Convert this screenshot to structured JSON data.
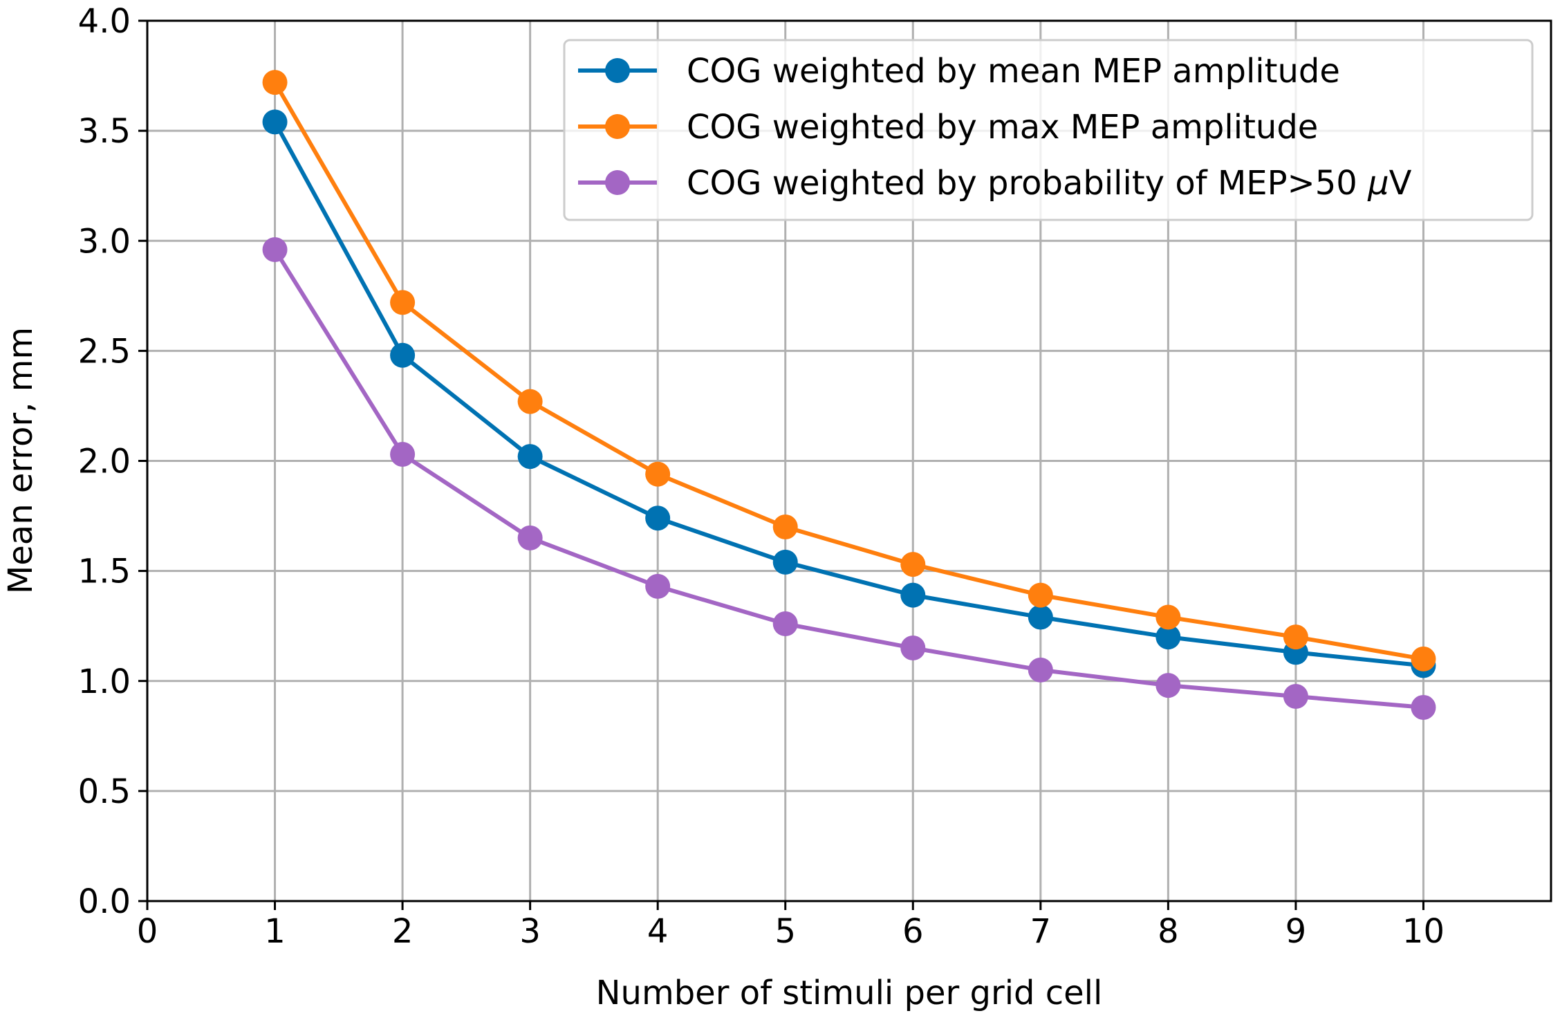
{
  "chart_data": {
    "type": "line",
    "title": "",
    "xlabel": "Number of stimuli per grid cell",
    "ylabel": "Mean error, mm",
    "xlim": [
      0,
      11
    ],
    "ylim": [
      0.0,
      4.0
    ],
    "xticks": [
      0,
      1,
      2,
      3,
      4,
      5,
      6,
      7,
      8,
      9,
      10
    ],
    "xtick_labels": [
      "0",
      "1",
      "2",
      "3",
      "4",
      "5",
      "6",
      "7",
      "8",
      "9",
      "10"
    ],
    "yticks": [
      0.0,
      0.5,
      1.0,
      1.5,
      2.0,
      2.5,
      3.0,
      3.5,
      4.0
    ],
    "ytick_labels": [
      "0.0",
      "0.5",
      "1.0",
      "1.5",
      "2.0",
      "2.5",
      "3.0",
      "3.5",
      "4.0"
    ],
    "grid": true,
    "legend_position": "top-right",
    "x": [
      1,
      2,
      3,
      4,
      5,
      6,
      7,
      8,
      9,
      10
    ],
    "series": [
      {
        "name": "COG weighted by mean MEP amplitude",
        "legend_text": "COG weighted by mean MEP amplitude",
        "color": "#0072b2",
        "values": [
          3.54,
          2.48,
          2.02,
          1.74,
          1.54,
          1.39,
          1.29,
          1.2,
          1.13,
          1.07
        ]
      },
      {
        "name": "COG weighted by max MEP amplitude",
        "legend_text": "COG weighted by max MEP amplitude",
        "color": "#ff7f0e",
        "values": [
          3.72,
          2.72,
          2.27,
          1.94,
          1.7,
          1.53,
          1.39,
          1.29,
          1.2,
          1.1
        ]
      },
      {
        "name": "COG weighted by probability of MEP>50 μV",
        "legend_text": "COG weighted by probability of MEP>50 ",
        "legend_mu": "μ",
        "legend_unit": "V",
        "color": "#a366c4",
        "values": [
          2.96,
          2.03,
          1.65,
          1.43,
          1.26,
          1.15,
          1.05,
          0.98,
          0.93,
          0.88
        ]
      }
    ]
  }
}
